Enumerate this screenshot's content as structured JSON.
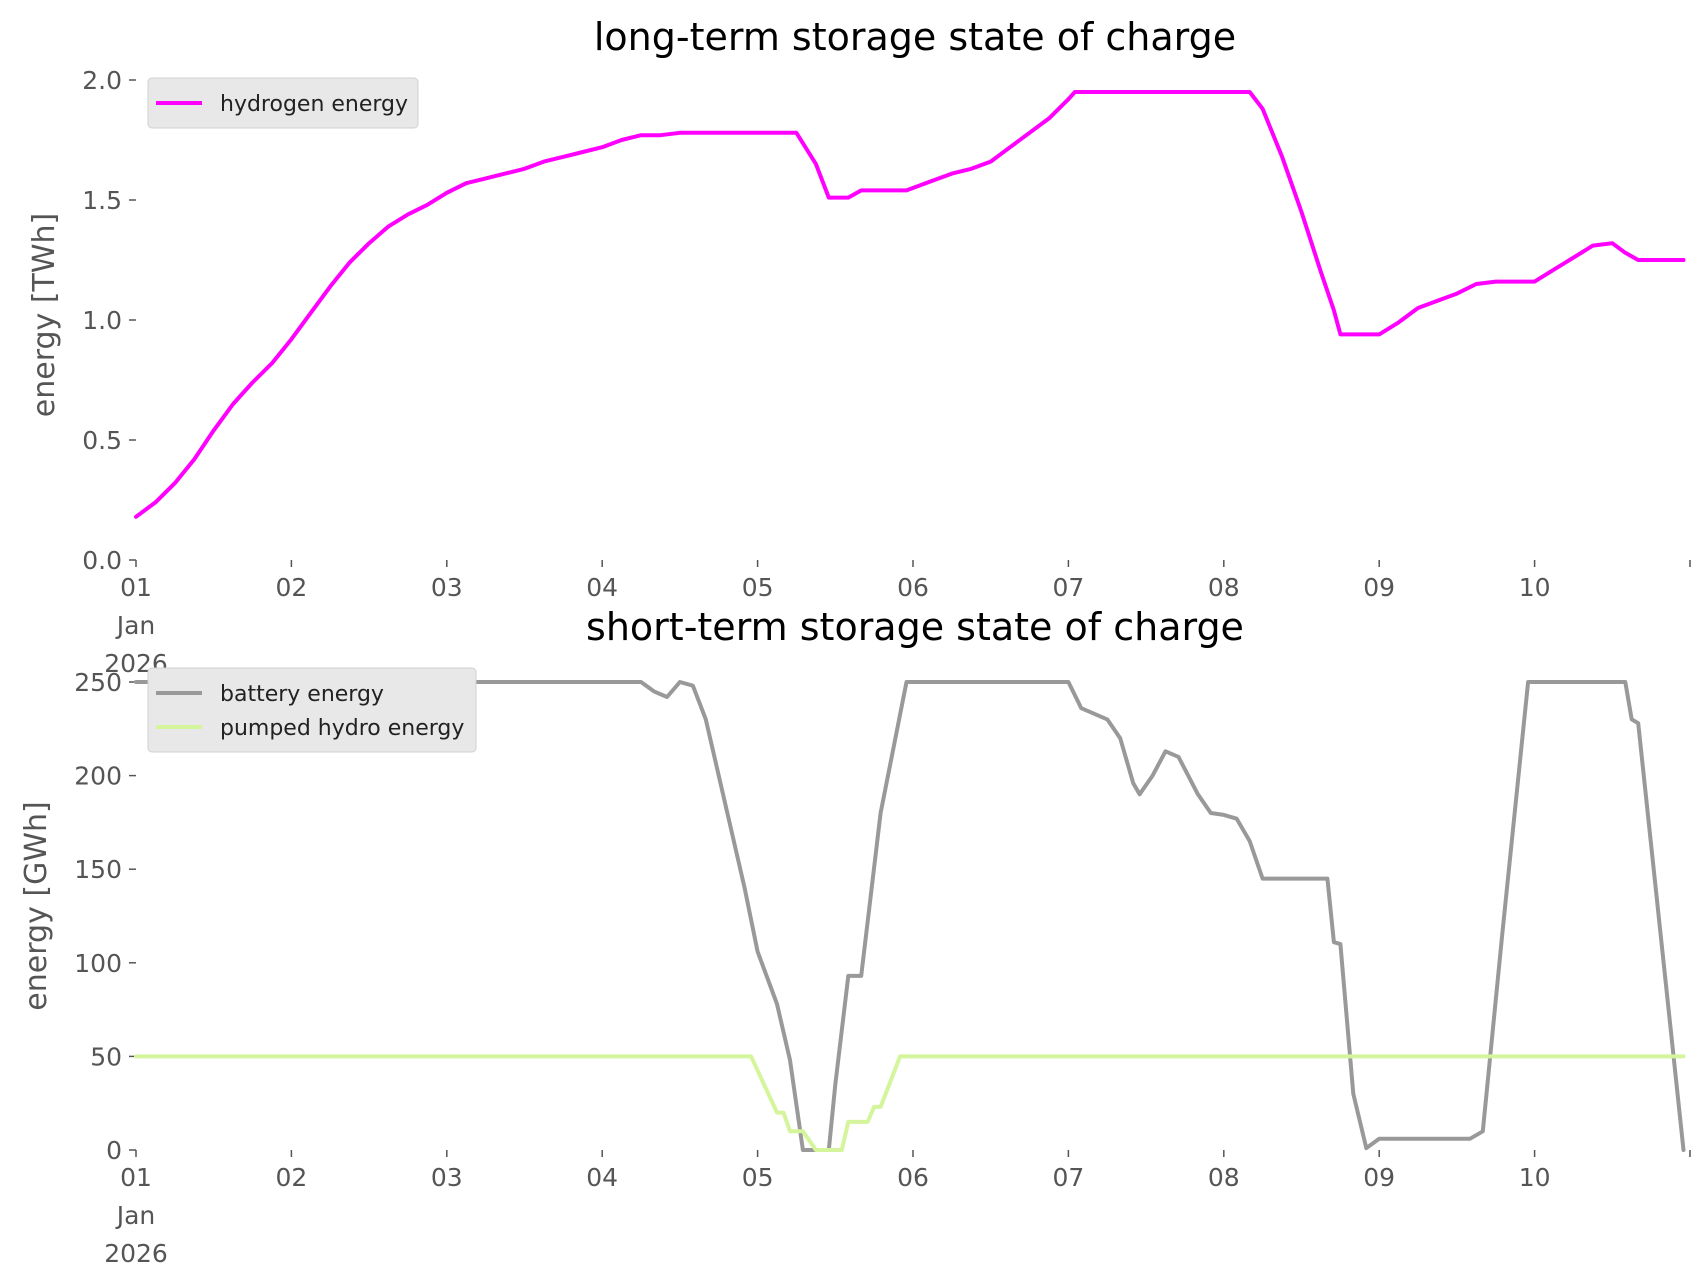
{
  "chart_data": [
    {
      "type": "line",
      "title": "long-term storage state of charge",
      "ylabel": "energy [TWh]",
      "xlabel": "",
      "ylim": [
        0,
        2.0
      ],
      "yticks": [
        "0.0",
        "0.5",
        "1.0",
        "1.5",
        "2.0"
      ],
      "x_tick_labels": [
        "01\nJan\n2026",
        "02",
        "03",
        "04",
        "05",
        "06",
        "07",
        "08",
        "09",
        "10"
      ],
      "grid": false,
      "legend": "top-left",
      "series": [
        {
          "name": "hydrogen energy",
          "color": "#ff00ff",
          "points": [
            [
              "2026-01-01 00:00",
              0.18
            ],
            [
              "2026-01-01 03:00",
              0.24
            ],
            [
              "2026-01-01 06:00",
              0.32
            ],
            [
              "2026-01-01 09:00",
              0.42
            ],
            [
              "2026-01-01 12:00",
              0.54
            ],
            [
              "2026-01-01 15:00",
              0.65
            ],
            [
              "2026-01-01 18:00",
              0.74
            ],
            [
              "2026-01-01 21:00",
              0.82
            ],
            [
              "2026-01-02 00:00",
              0.92
            ],
            [
              "2026-01-02 03:00",
              1.03
            ],
            [
              "2026-01-02 06:00",
              1.14
            ],
            [
              "2026-01-02 09:00",
              1.24
            ],
            [
              "2026-01-02 12:00",
              1.32
            ],
            [
              "2026-01-02 15:00",
              1.39
            ],
            [
              "2026-01-02 18:00",
              1.44
            ],
            [
              "2026-01-02 21:00",
              1.48
            ],
            [
              "2026-01-03 00:00",
              1.53
            ],
            [
              "2026-01-03 03:00",
              1.57
            ],
            [
              "2026-01-03 06:00",
              1.59
            ],
            [
              "2026-01-03 09:00",
              1.61
            ],
            [
              "2026-01-03 12:00",
              1.63
            ],
            [
              "2026-01-03 15:00",
              1.66
            ],
            [
              "2026-01-03 18:00",
              1.68
            ],
            [
              "2026-01-03 21:00",
              1.7
            ],
            [
              "2026-01-04 00:00",
              1.72
            ],
            [
              "2026-01-04 03:00",
              1.75
            ],
            [
              "2026-01-04 06:00",
              1.77
            ],
            [
              "2026-01-04 09:00",
              1.77
            ],
            [
              "2026-01-04 12:00",
              1.78
            ],
            [
              "2026-01-04 18:00",
              1.78
            ],
            [
              "2026-01-05 00:00",
              1.78
            ],
            [
              "2026-01-05 06:00",
              1.78
            ],
            [
              "2026-01-05 09:00",
              1.65
            ],
            [
              "2026-01-05 11:00",
              1.51
            ],
            [
              "2026-01-05 14:00",
              1.51
            ],
            [
              "2026-01-05 16:00",
              1.54
            ],
            [
              "2026-01-05 18:00",
              1.54
            ],
            [
              "2026-01-05 23:00",
              1.54
            ],
            [
              "2026-01-06 03:00",
              1.58
            ],
            [
              "2026-01-06 06:00",
              1.61
            ],
            [
              "2026-01-06 09:00",
              1.63
            ],
            [
              "2026-01-06 12:00",
              1.66
            ],
            [
              "2026-01-06 15:00",
              1.72
            ],
            [
              "2026-01-06 18:00",
              1.78
            ],
            [
              "2026-01-06 21:00",
              1.84
            ],
            [
              "2026-01-07 00:00",
              1.92
            ],
            [
              "2026-01-07 01:00",
              1.95
            ],
            [
              "2026-01-07 12:00",
              1.95
            ],
            [
              "2026-01-08 00:00",
              1.95
            ],
            [
              "2026-01-08 04:00",
              1.95
            ],
            [
              "2026-01-08 06:00",
              1.88
            ],
            [
              "2026-01-08 09:00",
              1.68
            ],
            [
              "2026-01-08 12:00",
              1.45
            ],
            [
              "2026-01-08 15:00",
              1.2
            ],
            [
              "2026-01-08 17:00",
              1.04
            ],
            [
              "2026-01-08 18:00",
              0.94
            ],
            [
              "2026-01-08 21:00",
              0.94
            ],
            [
              "2026-01-09 00:00",
              0.94
            ],
            [
              "2026-01-09 03:00",
              0.99
            ],
            [
              "2026-01-09 06:00",
              1.05
            ],
            [
              "2026-01-09 09:00",
              1.08
            ],
            [
              "2026-01-09 12:00",
              1.11
            ],
            [
              "2026-01-09 15:00",
              1.15
            ],
            [
              "2026-01-09 18:00",
              1.16
            ],
            [
              "2026-01-10 00:00",
              1.16
            ],
            [
              "2026-01-10 03:00",
              1.21
            ],
            [
              "2026-01-10 06:00",
              1.26
            ],
            [
              "2026-01-10 09:00",
              1.31
            ],
            [
              "2026-01-10 12:00",
              1.32
            ],
            [
              "2026-01-10 14:00",
              1.28
            ],
            [
              "2026-01-10 16:00",
              1.25
            ],
            [
              "2026-01-10 23:00",
              1.25
            ]
          ]
        }
      ]
    },
    {
      "type": "line",
      "title": "short-term storage state of charge",
      "ylabel": "energy [GWh]",
      "xlabel": "",
      "ylim": [
        0,
        250
      ],
      "yticks": [
        "0",
        "50",
        "100",
        "150",
        "200",
        "250"
      ],
      "x_tick_labels": [
        "01\nJan\n2026",
        "02",
        "03",
        "04",
        "05",
        "06",
        "07",
        "08",
        "09",
        "10"
      ],
      "grid": false,
      "legend": "top-left",
      "series": [
        {
          "name": "battery energy",
          "color": "#999999",
          "points": [
            [
              "2026-01-01 00:00",
              250
            ],
            [
              "2026-01-04 06:00",
              250
            ],
            [
              "2026-01-04 08:00",
              245
            ],
            [
              "2026-01-04 10:00",
              242
            ],
            [
              "2026-01-04 12:00",
              250
            ],
            [
              "2026-01-04 14:00",
              248
            ],
            [
              "2026-01-04 16:00",
              230
            ],
            [
              "2026-01-04 19:00",
              185
            ],
            [
              "2026-01-04 22:00",
              140
            ],
            [
              "2026-01-05 00:00",
              106
            ],
            [
              "2026-01-05 03:00",
              78
            ],
            [
              "2026-01-05 05:00",
              48
            ],
            [
              "2026-01-05 07:00",
              0
            ],
            [
              "2026-01-05 11:00",
              0
            ],
            [
              "2026-01-05 12:00",
              35
            ],
            [
              "2026-01-05 14:00",
              93
            ],
            [
              "2026-01-05 16:00",
              93
            ],
            [
              "2026-01-05 19:00",
              180
            ],
            [
              "2026-01-05 23:00",
              250
            ],
            [
              "2026-01-07 00:00",
              250
            ],
            [
              "2026-01-07 02:00",
              236
            ],
            [
              "2026-01-07 04:00",
              233
            ],
            [
              "2026-01-07 06:00",
              230
            ],
            [
              "2026-01-07 08:00",
              220
            ],
            [
              "2026-01-07 10:00",
              196
            ],
            [
              "2026-01-07 11:00",
              190
            ],
            [
              "2026-01-07 13:00",
              200
            ],
            [
              "2026-01-07 15:00",
              213
            ],
            [
              "2026-01-07 17:00",
              210
            ],
            [
              "2026-01-07 20:00",
              190
            ],
            [
              "2026-01-07 22:00",
              180
            ],
            [
              "2026-01-08 00:00",
              179
            ],
            [
              "2026-01-08 02:00",
              177
            ],
            [
              "2026-01-08 04:00",
              165
            ],
            [
              "2026-01-08 06:00",
              145
            ],
            [
              "2026-01-08 16:00",
              145
            ],
            [
              "2026-01-08 17:00",
              111
            ],
            [
              "2026-01-08 18:00",
              110
            ],
            [
              "2026-01-08 20:00",
              30
            ],
            [
              "2026-01-08 22:00",
              1
            ],
            [
              "2026-01-09 00:00",
              6
            ],
            [
              "2026-01-09 14:00",
              6
            ],
            [
              "2026-01-09 16:00",
              10
            ],
            [
              "2026-01-09 19:00",
              115
            ],
            [
              "2026-01-09 23:00",
              250
            ],
            [
              "2026-01-10 14:00",
              250
            ],
            [
              "2026-01-10 15:00",
              230
            ],
            [
              "2026-01-10 16:00",
              228
            ],
            [
              "2026-01-10 23:00",
              0
            ]
          ]
        },
        {
          "name": "pumped hydro energy",
          "color": "#d4f59b",
          "points": [
            [
              "2026-01-01 00:00",
              50
            ],
            [
              "2026-01-04 23:00",
              50
            ],
            [
              "2026-01-05 03:00",
              20
            ],
            [
              "2026-01-05 04:00",
              20
            ],
            [
              "2026-01-05 05:00",
              10
            ],
            [
              "2026-01-05 07:00",
              10
            ],
            [
              "2026-01-05 09:00",
              0
            ],
            [
              "2026-01-05 13:00",
              0
            ],
            [
              "2026-01-05 14:00",
              15
            ],
            [
              "2026-01-05 17:00",
              15
            ],
            [
              "2026-01-05 18:00",
              23
            ],
            [
              "2026-01-05 19:00",
              23
            ],
            [
              "2026-01-05 22:00",
              50
            ],
            [
              "2026-01-10 23:00",
              50
            ]
          ]
        }
      ]
    }
  ]
}
